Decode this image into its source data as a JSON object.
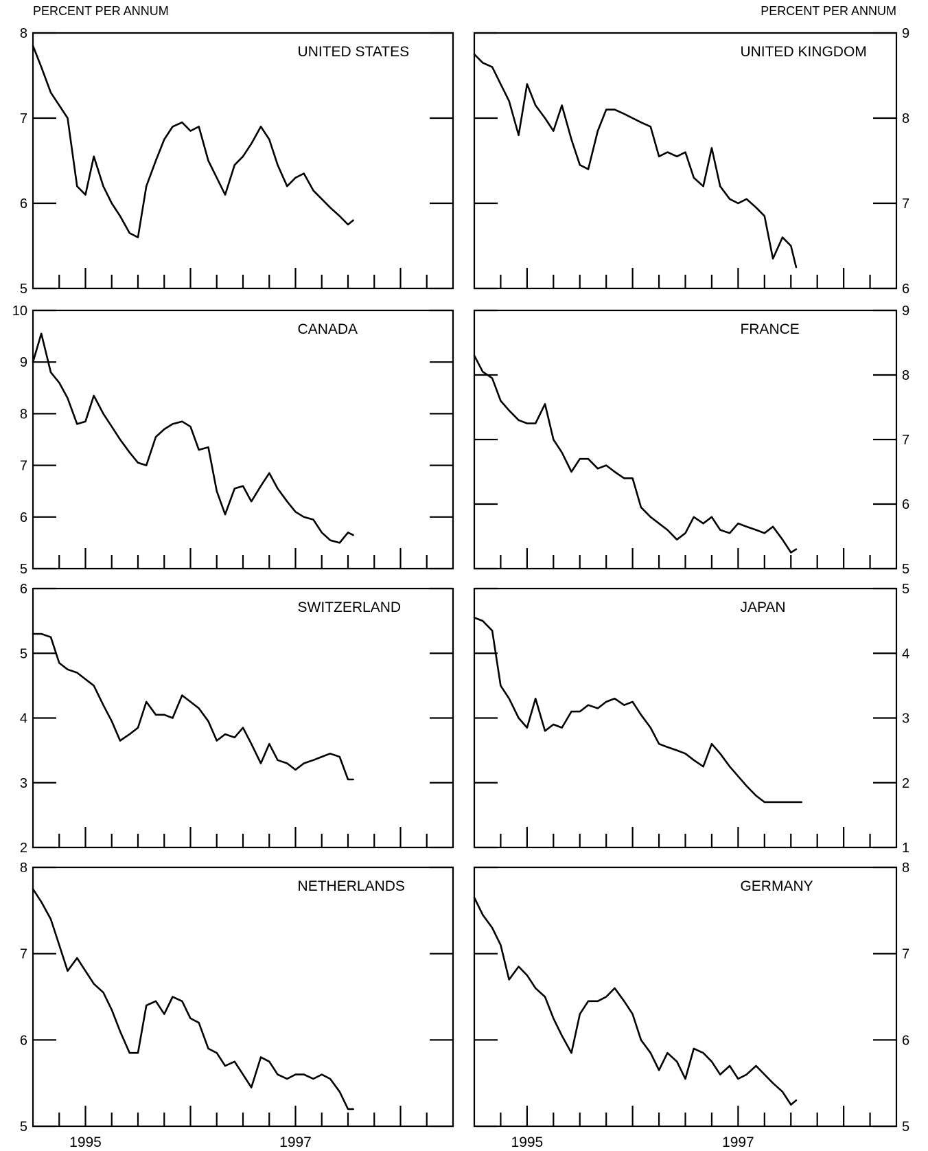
{
  "header": {
    "left_unit": "PERCENT PER ANNUM",
    "right_unit": "PERCENT PER ANNUM"
  },
  "x_axis": {
    "labels": [
      {
        "year": 1995,
        "text": "1995"
      },
      {
        "year": 1997,
        "text": "1997"
      }
    ]
  },
  "chart_data": [
    {
      "type": "line",
      "title": "UNITED STATES",
      "column": "left",
      "row": 0,
      "ylim": [
        5,
        8
      ],
      "yticks": [
        "5",
        "6",
        "7",
        "8"
      ],
      "tick_values": [
        5,
        6,
        7,
        8
      ],
      "x_range": [
        1994.5,
        1998.5
      ],
      "series": [
        {
          "x": [
            1994.5,
            1994.58,
            1994.67,
            1994.75,
            1994.83,
            1994.92,
            1995.0,
            1995.08,
            1995.17,
            1995.25,
            1995.33,
            1995.42,
            1995.5,
            1995.58,
            1995.67,
            1995.75,
            1995.83,
            1995.92,
            1996.0,
            1996.08,
            1996.17,
            1996.25,
            1996.33,
            1996.42,
            1996.5,
            1996.58,
            1996.67,
            1996.75,
            1996.83,
            1996.92,
            1997.0,
            1997.08,
            1997.17,
            1997.25,
            1997.33,
            1997.42,
            1997.5,
            1997.55
          ],
          "y": [
            7.85,
            7.6,
            7.3,
            7.15,
            7.0,
            6.2,
            6.1,
            6.55,
            6.2,
            6.0,
            5.85,
            5.65,
            5.6,
            6.2,
            6.5,
            6.75,
            6.9,
            6.95,
            6.85,
            6.9,
            6.5,
            6.3,
            6.1,
            6.45,
            6.55,
            6.7,
            6.9,
            6.75,
            6.45,
            6.2,
            6.3,
            6.35,
            6.15,
            6.05,
            5.95,
            5.85,
            5.75,
            5.8
          ]
        }
      ]
    },
    {
      "type": "line",
      "title": "UNITED KINGDOM",
      "column": "right",
      "row": 0,
      "ylim": [
        6,
        9
      ],
      "yticks": [
        "6",
        "7",
        "8",
        "9"
      ],
      "tick_values": [
        6,
        7,
        8,
        9
      ],
      "x_range": [
        1994.5,
        1998.5
      ],
      "series": [
        {
          "x": [
            1994.5,
            1994.58,
            1994.67,
            1994.75,
            1994.83,
            1994.92,
            1995.0,
            1995.08,
            1995.17,
            1995.25,
            1995.33,
            1995.42,
            1995.5,
            1995.58,
            1995.67,
            1995.75,
            1995.83,
            1995.92,
            1996.0,
            1996.08,
            1996.17,
            1996.25,
            1996.33,
            1996.42,
            1996.5,
            1996.58,
            1996.67,
            1996.75,
            1996.83,
            1996.92,
            1997.0,
            1997.08,
            1997.17,
            1997.25,
            1997.33,
            1997.42,
            1997.5,
            1997.55
          ],
          "y": [
            8.75,
            8.65,
            8.6,
            8.4,
            8.2,
            7.8,
            8.4,
            8.15,
            8.0,
            7.85,
            8.15,
            7.75,
            7.45,
            7.4,
            7.85,
            8.1,
            8.1,
            8.05,
            8.0,
            7.95,
            7.9,
            7.55,
            7.6,
            7.55,
            7.6,
            7.3,
            7.2,
            7.65,
            7.2,
            7.05,
            7.0,
            7.05,
            6.95,
            6.85,
            6.35,
            6.6,
            6.5,
            6.25
          ]
        }
      ]
    },
    {
      "type": "line",
      "title": "CANADA",
      "column": "left",
      "row": 1,
      "ylim": [
        5,
        10
      ],
      "yticks": [
        "5",
        "6",
        "7",
        "8",
        "9",
        "10"
      ],
      "tick_values": [
        5,
        6,
        7,
        8,
        9,
        10
      ],
      "x_range": [
        1994.5,
        1998.5
      ],
      "series": [
        {
          "x": [
            1994.5,
            1994.58,
            1994.67,
            1994.75,
            1994.83,
            1994.92,
            1995.0,
            1995.08,
            1995.17,
            1995.25,
            1995.33,
            1995.42,
            1995.5,
            1995.58,
            1995.67,
            1995.75,
            1995.83,
            1995.92,
            1996.0,
            1996.08,
            1996.17,
            1996.25,
            1996.33,
            1996.42,
            1996.5,
            1996.58,
            1996.67,
            1996.75,
            1996.83,
            1996.92,
            1997.0,
            1997.08,
            1997.17,
            1997.25,
            1997.33,
            1997.42,
            1997.5,
            1997.55
          ],
          "y": [
            9.0,
            9.55,
            8.8,
            8.6,
            8.3,
            7.8,
            7.85,
            8.35,
            8.0,
            7.75,
            7.5,
            7.25,
            7.05,
            7.0,
            7.55,
            7.7,
            7.8,
            7.85,
            7.75,
            7.3,
            7.35,
            6.5,
            6.05,
            6.55,
            6.6,
            6.3,
            6.6,
            6.85,
            6.55,
            6.3,
            6.1,
            6.0,
            5.95,
            5.7,
            5.55,
            5.5,
            5.7,
            5.65
          ]
        }
      ]
    },
    {
      "type": "line",
      "title": "FRANCE",
      "column": "right",
      "row": 1,
      "ylim": [
        5,
        9
      ],
      "yticks": [
        "5",
        "6",
        "7",
        "8",
        "9"
      ],
      "tick_values": [
        5,
        6,
        7,
        8,
        9
      ],
      "x_range": [
        1994.5,
        1998.5
      ],
      "series": [
        {
          "x": [
            1994.5,
            1994.58,
            1994.67,
            1994.75,
            1994.83,
            1994.92,
            1995.0,
            1995.08,
            1995.17,
            1995.25,
            1995.33,
            1995.42,
            1995.5,
            1995.58,
            1995.67,
            1995.75,
            1995.83,
            1995.92,
            1996.0,
            1996.08,
            1996.17,
            1996.25,
            1996.33,
            1996.42,
            1996.5,
            1996.58,
            1996.67,
            1996.75,
            1996.83,
            1996.92,
            1997.0,
            1997.08,
            1997.17,
            1997.25,
            1997.33,
            1997.42,
            1997.5,
            1997.55
          ],
          "y": [
            8.3,
            8.05,
            7.95,
            7.6,
            7.45,
            7.3,
            7.25,
            7.25,
            7.55,
            7.0,
            6.8,
            6.5,
            6.7,
            6.7,
            6.55,
            6.6,
            6.5,
            6.4,
            6.4,
            5.95,
            5.8,
            5.7,
            5.6,
            5.45,
            5.55,
            5.8,
            5.7,
            5.8,
            5.6,
            5.55,
            5.7,
            5.65,
            5.6,
            5.55,
            5.65,
            5.45,
            5.25,
            5.3
          ]
        }
      ]
    },
    {
      "type": "line",
      "title": "SWITZERLAND",
      "column": "left",
      "row": 2,
      "ylim": [
        2,
        6
      ],
      "yticks": [
        "2",
        "3",
        "4",
        "5",
        "6"
      ],
      "tick_values": [
        2,
        3,
        4,
        5,
        6
      ],
      "x_range": [
        1994.5,
        1998.5
      ],
      "series": [
        {
          "x": [
            1994.5,
            1994.58,
            1994.67,
            1994.75,
            1994.83,
            1994.92,
            1995.0,
            1995.08,
            1995.17,
            1995.25,
            1995.33,
            1995.42,
            1995.5,
            1995.58,
            1995.67,
            1995.75,
            1995.83,
            1995.92,
            1996.0,
            1996.08,
            1996.17,
            1996.25,
            1996.33,
            1996.42,
            1996.5,
            1996.58,
            1996.67,
            1996.75,
            1996.83,
            1996.92,
            1997.0,
            1997.08,
            1997.17,
            1997.25,
            1997.33,
            1997.42,
            1997.5,
            1997.55
          ],
          "y": [
            5.3,
            5.3,
            5.25,
            4.85,
            4.75,
            4.7,
            4.6,
            4.5,
            4.2,
            3.95,
            3.65,
            3.75,
            3.85,
            4.25,
            4.05,
            4.05,
            4.0,
            4.35,
            4.25,
            4.15,
            3.95,
            3.65,
            3.75,
            3.7,
            3.85,
            3.6,
            3.3,
            3.6,
            3.35,
            3.3,
            3.2,
            3.3,
            3.35,
            3.4,
            3.45,
            3.4,
            3.05,
            3.05
          ]
        }
      ]
    },
    {
      "type": "line",
      "title": "JAPAN",
      "column": "right",
      "row": 2,
      "ylim": [
        1,
        5
      ],
      "yticks": [
        "1",
        "2",
        "3",
        "4",
        "5"
      ],
      "tick_values": [
        1,
        2,
        3,
        4,
        5
      ],
      "x_range": [
        1994.5,
        1998.5
      ],
      "series": [
        {
          "x": [
            1994.5,
            1994.58,
            1994.67,
            1994.75,
            1994.83,
            1994.92,
            1995.0,
            1995.08,
            1995.17,
            1995.25,
            1995.33,
            1995.42,
            1995.5,
            1995.58,
            1995.67,
            1995.75,
            1995.83,
            1995.92,
            1996.0,
            1996.08,
            1996.17,
            1996.25,
            1996.33,
            1996.42,
            1996.5,
            1996.58,
            1996.67,
            1996.75,
            1996.83,
            1996.92,
            1997.0,
            1997.08,
            1997.17,
            1997.25,
            1997.33,
            1997.42,
            1997.5,
            1997.55,
            1997.6
          ],
          "y": [
            4.55,
            4.5,
            4.35,
            3.5,
            3.3,
            3.0,
            2.85,
            3.3,
            2.8,
            2.9,
            2.85,
            3.1,
            3.1,
            3.2,
            3.15,
            3.25,
            3.3,
            3.2,
            3.25,
            3.05,
            2.85,
            2.6,
            2.55,
            2.5,
            2.45,
            2.35,
            2.25,
            2.6,
            2.45,
            2.25,
            2.1,
            1.95,
            1.8,
            1.7,
            1.7,
            1.7,
            1.7,
            1.7,
            1.7
          ]
        }
      ]
    },
    {
      "type": "line",
      "title": "NETHERLANDS",
      "column": "left",
      "row": 3,
      "ylim": [
        5,
        8
      ],
      "yticks": [
        "5",
        "6",
        "7",
        "8"
      ],
      "tick_values": [
        5,
        6,
        7,
        8
      ],
      "x_range": [
        1994.5,
        1998.5
      ],
      "series": [
        {
          "x": [
            1994.5,
            1994.58,
            1994.67,
            1994.75,
            1994.83,
            1994.92,
            1995.0,
            1995.08,
            1995.17,
            1995.25,
            1995.33,
            1995.42,
            1995.5,
            1995.58,
            1995.67,
            1995.75,
            1995.83,
            1995.92,
            1996.0,
            1996.08,
            1996.17,
            1996.25,
            1996.33,
            1996.42,
            1996.5,
            1996.58,
            1996.67,
            1996.75,
            1996.83,
            1996.92,
            1997.0,
            1997.08,
            1997.17,
            1997.25,
            1997.33,
            1997.42,
            1997.5,
            1997.55
          ],
          "y": [
            7.75,
            7.6,
            7.4,
            7.1,
            6.8,
            6.95,
            6.8,
            6.65,
            6.55,
            6.35,
            6.1,
            5.85,
            5.85,
            6.4,
            6.45,
            6.3,
            6.5,
            6.45,
            6.25,
            6.2,
            5.9,
            5.85,
            5.7,
            5.75,
            5.6,
            5.45,
            5.8,
            5.75,
            5.6,
            5.55,
            5.6,
            5.6,
            5.55,
            5.6,
            5.55,
            5.4,
            5.2,
            5.2
          ]
        }
      ]
    },
    {
      "type": "line",
      "title": "GERMANY",
      "column": "right",
      "row": 3,
      "ylim": [
        5,
        8
      ],
      "yticks": [
        "5",
        "6",
        "7",
        "8"
      ],
      "tick_values": [
        5,
        6,
        7,
        8
      ],
      "x_range": [
        1994.5,
        1998.5
      ],
      "series": [
        {
          "x": [
            1994.5,
            1994.58,
            1994.67,
            1994.75,
            1994.83,
            1994.92,
            1995.0,
            1995.08,
            1995.17,
            1995.25,
            1995.33,
            1995.42,
            1995.5,
            1995.58,
            1995.67,
            1995.75,
            1995.83,
            1995.92,
            1996.0,
            1996.08,
            1996.17,
            1996.25,
            1996.33,
            1996.42,
            1996.5,
            1996.58,
            1996.67,
            1996.75,
            1996.83,
            1996.92,
            1997.0,
            1997.08,
            1997.17,
            1997.25,
            1997.33,
            1997.42,
            1997.5,
            1997.55
          ],
          "y": [
            7.65,
            7.45,
            7.3,
            7.1,
            6.7,
            6.85,
            6.75,
            6.6,
            6.5,
            6.25,
            6.05,
            5.85,
            6.3,
            6.45,
            6.45,
            6.5,
            6.6,
            6.45,
            6.3,
            6.0,
            5.85,
            5.65,
            5.85,
            5.75,
            5.55,
            5.9,
            5.85,
            5.75,
            5.6,
            5.7,
            5.55,
            5.6,
            5.7,
            5.6,
            5.5,
            5.4,
            5.25,
            5.3
          ]
        }
      ]
    }
  ]
}
